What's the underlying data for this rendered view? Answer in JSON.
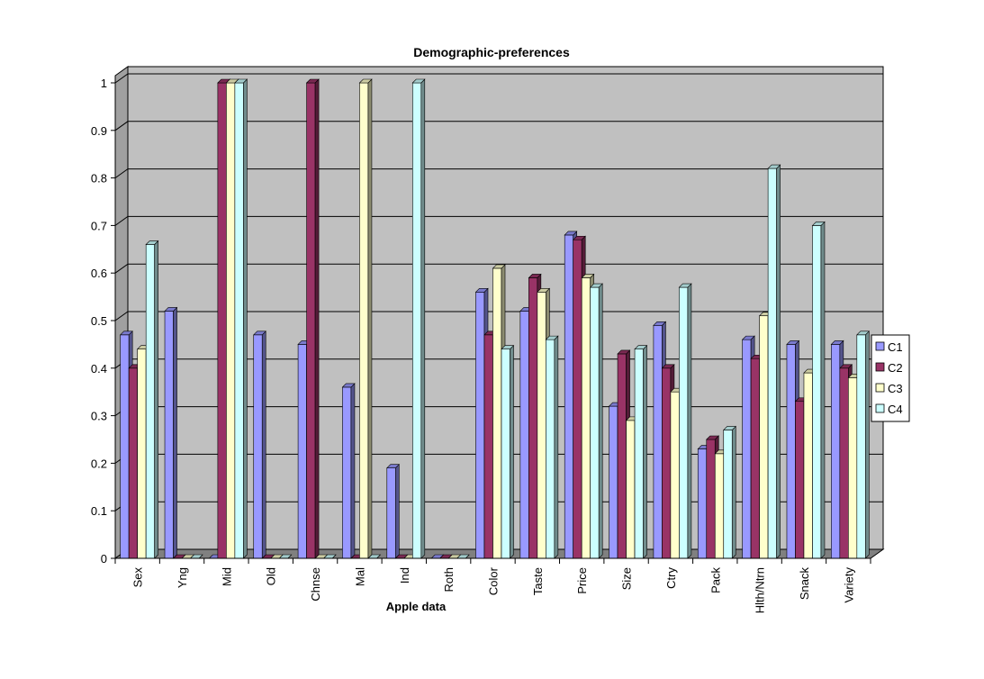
{
  "chart_data": {
    "type": "bar",
    "title": "Demographic-preferences",
    "xlabel": "Apple data",
    "ylabel": "",
    "ylim": [
      0,
      1
    ],
    "yticks": [
      "0",
      "0.1",
      "0.2",
      "0.3",
      "0.4",
      "0.5",
      "0.6",
      "0.7",
      "0.8",
      "0.9",
      "1"
    ],
    "grid": true,
    "legend_position": "right",
    "categories": [
      "Sex",
      "Yng",
      "Mid",
      "Old",
      "Chnse",
      "Mal",
      "Ind",
      "Roth",
      "Color",
      "Taste",
      "Price",
      "Size",
      "Ctry",
      "Pack",
      "Hlth/Ntrn",
      "Snack",
      "Variety"
    ],
    "series": [
      {
        "name": "C1",
        "color": "#9999ff",
        "values": [
          0.47,
          0.52,
          0,
          0.47,
          0.45,
          0.36,
          0.19,
          0,
          0.56,
          0.52,
          0.68,
          0.32,
          0.49,
          0.23,
          0.46,
          0.45,
          0.45
        ]
      },
      {
        "name": "C2",
        "color": "#993366",
        "values": [
          0.4,
          0,
          1,
          0,
          1,
          0,
          0,
          0,
          0.47,
          0.59,
          0.67,
          0.43,
          0.4,
          0.25,
          0.42,
          0.33,
          0.4
        ]
      },
      {
        "name": "C3",
        "color": "#ffffcc",
        "values": [
          0.44,
          0,
          1,
          0,
          0,
          1,
          0,
          0,
          0.61,
          0.56,
          0.59,
          0.29,
          0.35,
          0.22,
          0.51,
          0.39,
          0.38
        ]
      },
      {
        "name": "C4",
        "color": "#ccffff",
        "values": [
          0.66,
          0,
          1,
          0,
          0,
          0,
          1,
          0,
          0.44,
          0.46,
          0.57,
          0.44,
          0.57,
          0.27,
          0.82,
          0.7,
          0.47
        ]
      }
    ],
    "colors": {
      "wall": "#c0c0c0",
      "floor": "#808080",
      "gridline": "#000000"
    }
  }
}
